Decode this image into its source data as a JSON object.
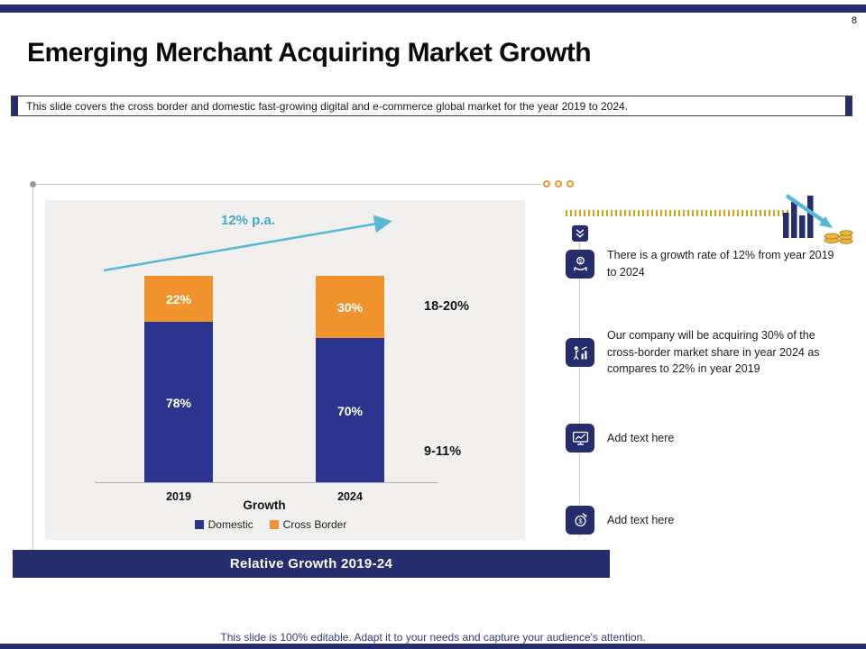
{
  "page_number": "8",
  "header": {
    "title": "Emerging Merchant Acquiring Market Growth",
    "subtitle": "This slide covers the cross border and domestic fast-growing digital and e-commerce global market for the year 2019 to 2024."
  },
  "chart_data": {
    "type": "bar",
    "stacked": true,
    "unit": "percent",
    "ylim": [
      0,
      100
    ],
    "categories": [
      "2019",
      "2024"
    ],
    "series": [
      {
        "name": "Domestic",
        "color": "#2b3590",
        "values": [
          78,
          70
        ]
      },
      {
        "name": "Cross Border",
        "color": "#f0932d",
        "values": [
          22,
          30
        ]
      }
    ],
    "labels": {
      "bar1_top": "22%",
      "bar1_bottom": "78%",
      "bar2_top": "30%",
      "bar2_bottom": "70%"
    },
    "trend_label": "12% p.a.",
    "annotation_top": "18-20%",
    "annotation_bottom": "9-11%",
    "xlabel": "Growth",
    "legend_position": "bottom",
    "caption": "Relative Growth 2019-24"
  },
  "timeline": {
    "items": [
      {
        "icon": "money-growth-icon",
        "text": "There is a growth rate of 12% from year 2019 to 2024"
      },
      {
        "icon": "market-share-icon",
        "text": "Our company will be acquiring 30% of the cross-border market share in year 2024 as compares to 22% in year 2019"
      },
      {
        "icon": "monitor-chart-icon",
        "text": "Add text here"
      },
      {
        "icon": "currency-target-icon",
        "text": "Add text here"
      }
    ]
  },
  "footer": "This slide is 100% editable. Adapt it to your needs and capture your audience's attention.",
  "colors": {
    "navy": "#262d6d",
    "domestic_blue": "#2b3590",
    "cross_border_orange": "#f0932d",
    "trend_arrow_blue": "#57b8d8",
    "dash_gold": "#d4a017",
    "panel_gray": "#f1f0ee"
  }
}
